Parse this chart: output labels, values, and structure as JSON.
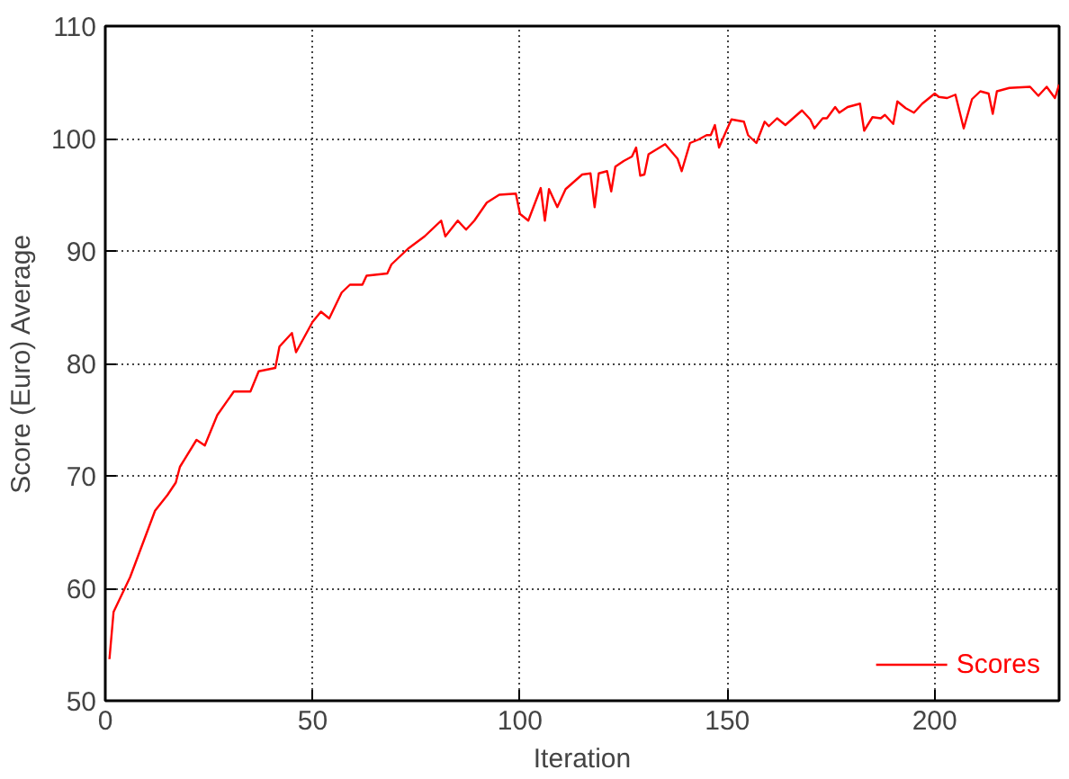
{
  "chart_data": {
    "type": "line",
    "xlabel": "Iteration",
    "ylabel": "Score (Euro) Average",
    "xlim": [
      0,
      230
    ],
    "ylim": [
      50,
      110
    ],
    "xticks": [
      0,
      50,
      100,
      150,
      200
    ],
    "yticks": [
      50,
      60,
      70,
      80,
      90,
      100,
      110
    ],
    "grid": true,
    "legend": "bottom right",
    "line_style": "solid",
    "series": [
      {
        "name": "Scores",
        "color": "#ff0000",
        "x": [
          1,
          2,
          6,
          12,
          15,
          17,
          18,
          22,
          24,
          27,
          31,
          35,
          37,
          41,
          42,
          45,
          46,
          50,
          52,
          54,
          57,
          59,
          62,
          63,
          68,
          69,
          73,
          77,
          81,
          82,
          85,
          87,
          89,
          92,
          95,
          99,
          100,
          102,
          105,
          106,
          107,
          109,
          111,
          115,
          117,
          118,
          119,
          121,
          122,
          123,
          125,
          127,
          128,
          129,
          130,
          131,
          135,
          138,
          139,
          141,
          143,
          145,
          146,
          147,
          148,
          150,
          151,
          154,
          155,
          157,
          159,
          160,
          162,
          164,
          168,
          170,
          171,
          173,
          174,
          176,
          177,
          179,
          182,
          183,
          185,
          187,
          188,
          190,
          191,
          193,
          195,
          197,
          200,
          201,
          203,
          205,
          206,
          207,
          209,
          211,
          213,
          214,
          215,
          218,
          223,
          225,
          227,
          229,
          230
        ],
        "values": [
          53.7,
          57.9,
          61,
          66.9,
          68.3,
          69.4,
          70.8,
          73.2,
          72.7,
          75.4,
          77.5,
          77.5,
          79.3,
          79.6,
          81.5,
          82.7,
          81.0,
          83.7,
          84.6,
          84.0,
          86.3,
          87.0,
          87.0,
          87.8,
          88.0,
          88.8,
          90.2,
          91.3,
          92.7,
          91.3,
          92.7,
          91.9,
          92.7,
          94.3,
          95.0,
          95.1,
          93.3,
          92.7,
          95.6,
          92.7,
          95.5,
          93.9,
          95.5,
          96.8,
          96.9,
          93.9,
          96.9,
          97.1,
          95.3,
          97.5,
          98.0,
          98.4,
          99.2,
          96.7,
          96.8,
          98.6,
          99.5,
          98.2,
          97.1,
          99.6,
          99.9,
          100.3,
          100.3,
          101.2,
          99.2,
          100.9,
          101.7,
          101.5,
          100.3,
          99.6,
          101.5,
          101.1,
          101.8,
          101.2,
          102.5,
          101.7,
          100.9,
          101.8,
          101.8,
          102.8,
          102.3,
          102.8,
          103.1,
          100.7,
          101.9,
          101.8,
          102.1,
          101.3,
          103.3,
          102.7,
          102.3,
          103.1,
          104.0,
          103.7,
          103.6,
          103.9,
          102.4,
          100.9,
          103.5,
          104.2,
          104.0,
          102.2,
          104.2,
          104.5,
          104.6,
          103.8,
          104.6,
          103.6,
          104.8
        ]
      }
    ]
  }
}
